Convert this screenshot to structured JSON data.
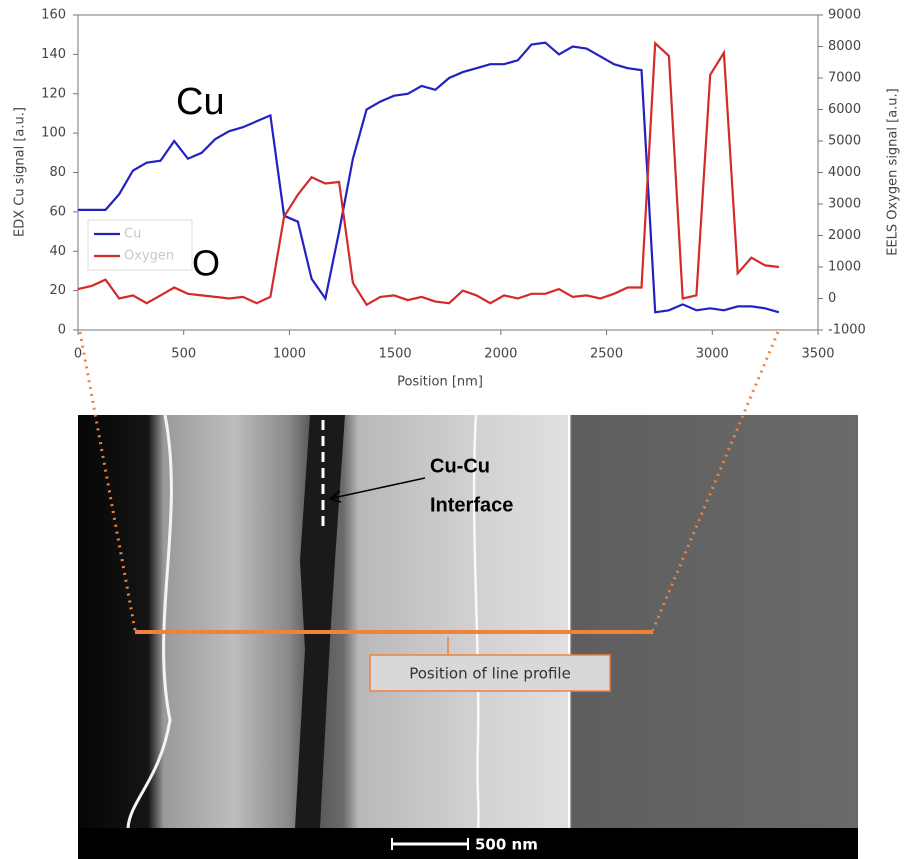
{
  "chart_data": {
    "type": "line",
    "x": [
      0,
      65,
      130,
      195,
      260,
      325,
      390,
      455,
      520,
      585,
      650,
      715,
      780,
      845,
      910,
      975,
      1040,
      1105,
      1170,
      1235,
      1300,
      1365,
      1430,
      1495,
      1560,
      1625,
      1690,
      1755,
      1820,
      1885,
      1950,
      2015,
      2080,
      2145,
      2210,
      2275,
      2340,
      2405,
      2470,
      2535,
      2600,
      2665,
      2730,
      2795,
      2860,
      2925,
      2990,
      3055,
      3120,
      3185,
      3250,
      3315
    ],
    "series": [
      {
        "name": "Cu",
        "color": "#2222c0",
        "values": [
          61,
          61,
          61,
          69,
          81,
          85,
          86,
          96,
          87,
          90,
          97,
          101,
          103,
          106,
          109,
          58,
          55,
          26,
          16,
          50,
          87,
          112,
          116,
          119,
          120,
          124,
          122,
          128,
          131,
          133,
          135,
          135,
          137,
          145,
          146,
          140,
          144,
          143,
          139,
          135,
          133,
          132,
          9,
          10,
          13,
          10,
          11,
          10,
          12,
          12,
          11,
          9
        ]
      },
      {
        "name": "Oxygen",
        "color": "#d42a2a",
        "axis": "y2",
        "values": [
          300,
          400,
          600,
          0,
          100,
          -150,
          100,
          350,
          150,
          100,
          50,
          0,
          50,
          -150,
          50,
          2600,
          3300,
          3850,
          3650,
          3700,
          500,
          -200,
          50,
          100,
          -50,
          50,
          -100,
          -150,
          250,
          100,
          -150,
          100,
          0,
          150,
          150,
          300,
          50,
          100,
          0,
          150,
          350,
          350,
          8100,
          7700,
          0,
          100,
          7100,
          7800,
          800,
          1300,
          1050,
          1000
        ]
      }
    ],
    "xlabel": "Position [nm]",
    "ylabel": "EDX Cu signal [a.u.]",
    "y2label": "EELS Oxygen signal [a.u.]",
    "xlim": [
      0,
      3500
    ],
    "xticks": [
      0,
      500,
      1000,
      1500,
      2000,
      2500,
      3000,
      3500
    ],
    "ylim": [
      0,
      160
    ],
    "yticks": [
      0,
      20,
      40,
      60,
      80,
      100,
      120,
      140,
      160
    ],
    "y2lim": [
      -1000,
      9000
    ],
    "y2ticks": [
      -1000,
      0,
      1000,
      2000,
      3000,
      4000,
      5000,
      6000,
      7000,
      8000,
      9000
    ],
    "legend": "left",
    "annotations": [
      "Cu",
      "O"
    ]
  },
  "image_labels": {
    "interface": [
      "Cu-Cu",
      "Interface"
    ],
    "line_profile": "Position of line profile",
    "scale_bar": "500 nm"
  }
}
